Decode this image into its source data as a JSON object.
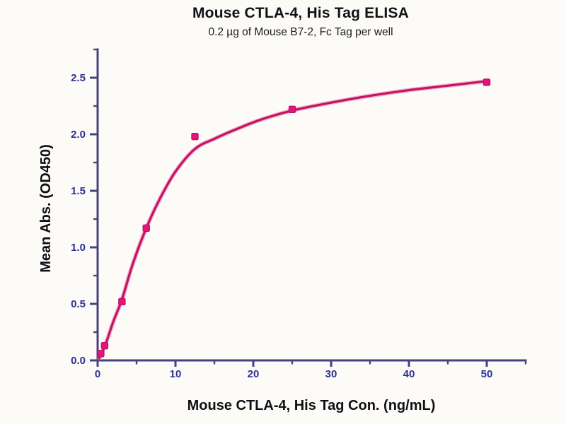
{
  "header": {
    "title": "Mouse CTLA-4, His Tag ELISA",
    "subtitle": "0.2 µg of Mouse B7-2, Fc Tag per well"
  },
  "chart_data": {
    "type": "scatter",
    "title": "Mouse CTLA-4, His Tag ELISA",
    "subtitle": "0.2 µg of Mouse B7-2, Fc Tag per well",
    "xlabel": "Mouse CTLA-4, His Tag Con. (ng/mL)",
    "ylabel": "Mean Abs. (OD450)",
    "xlim": [
      0,
      55
    ],
    "ylim": [
      0,
      2.75
    ],
    "grid": false,
    "legend": null,
    "x_major_ticks": [
      0,
      10,
      20,
      30,
      40,
      50
    ],
    "x_tick_labels": [
      "0",
      "10",
      "20",
      "30",
      "40",
      "50"
    ],
    "x_minor_ticks": [
      5,
      15,
      25,
      35,
      45,
      55
    ],
    "y_major_ticks": [
      0,
      0.5,
      1.0,
      1.5,
      2.0,
      2.5
    ],
    "y_tick_labels": [
      "0.0",
      "0.5",
      "1.0",
      "1.5",
      "2.0",
      "2.5"
    ],
    "y_minor_ticks": [
      0.25,
      0.75,
      1.25,
      1.75,
      2.25,
      2.75
    ],
    "points": [
      [
        0.4,
        0.06
      ],
      [
        0.9,
        0.13
      ],
      [
        3.125,
        0.52
      ],
      [
        6.25,
        1.17
      ],
      [
        12.5,
        1.98
      ],
      [
        25,
        2.22
      ],
      [
        50,
        2.46
      ]
    ],
    "fit_curve": [
      [
        0.2,
        0.02
      ],
      [
        1,
        0.14
      ],
      [
        2,
        0.34
      ],
      [
        3.125,
        0.54
      ],
      [
        4.5,
        0.85
      ],
      [
        6.25,
        1.17
      ],
      [
        8,
        1.43
      ],
      [
        10,
        1.67
      ],
      [
        12.5,
        1.87
      ],
      [
        15,
        1.96
      ],
      [
        18,
        2.05
      ],
      [
        21,
        2.13
      ],
      [
        25,
        2.21
      ],
      [
        30,
        2.28
      ],
      [
        35,
        2.34
      ],
      [
        40,
        2.39
      ],
      [
        45,
        2.43
      ],
      [
        50,
        2.47
      ]
    ],
    "colors": {
      "curve": "#c2155f",
      "curve_glow": "#f173b0",
      "marker": "#e3157d",
      "marker_edge": "#b50d5e",
      "axis": "#45437d",
      "tick_label": "#2c3191",
      "text": "#111118"
    }
  }
}
